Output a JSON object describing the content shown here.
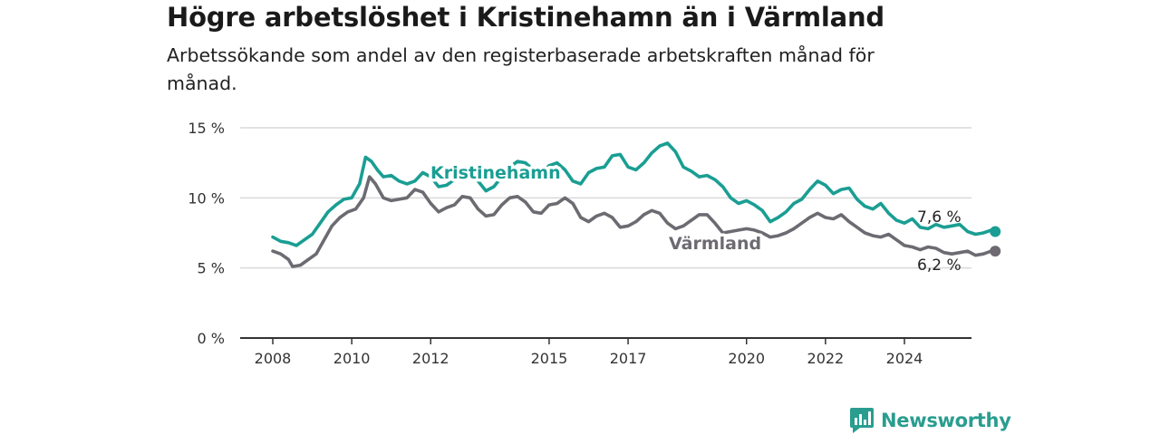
{
  "title": "Högre arbetslöshet i Kristinehamn än i Värmland",
  "subtitle": "Arbetssökande som andel av den registerbaserade arbetskraften månad för månad.",
  "brand": "Newsworthy",
  "colors": {
    "kristinehamn": "#1a9e93",
    "varmland": "#6d6b71",
    "grid": "#d9d9d9",
    "axis": "#333333"
  },
  "chart_data": {
    "type": "line",
    "xlim": [
      2007.3,
      2026.0
    ],
    "ylim": [
      0,
      15
    ],
    "y_ticks": [
      0,
      5,
      10,
      15
    ],
    "y_tick_labels": [
      "0 %",
      "5 %",
      "10 %",
      "15 %"
    ],
    "x_ticks": [
      2008,
      2010,
      2012,
      2015,
      2017,
      2020,
      2022,
      2024
    ],
    "x_tick_labels": [
      "2008",
      "2010",
      "2012",
      "2015",
      "2017",
      "2020",
      "2022",
      "2024"
    ],
    "grid": true,
    "series": [
      {
        "name": "Kristinehamn",
        "end_label": "7,6 %",
        "points": [
          [
            2008.0,
            7.2
          ],
          [
            2008.2,
            6.9
          ],
          [
            2008.4,
            6.8
          ],
          [
            2008.6,
            6.6
          ],
          [
            2008.8,
            7.0
          ],
          [
            2009.0,
            7.4
          ],
          [
            2009.2,
            8.2
          ],
          [
            2009.4,
            9.0
          ],
          [
            2009.6,
            9.5
          ],
          [
            2009.8,
            9.9
          ],
          [
            2010.0,
            10.0
          ],
          [
            2010.2,
            11.0
          ],
          [
            2010.35,
            12.9
          ],
          [
            2010.5,
            12.6
          ],
          [
            2010.65,
            12.0
          ],
          [
            2010.8,
            11.5
          ],
          [
            2011.0,
            11.6
          ],
          [
            2011.2,
            11.2
          ],
          [
            2011.4,
            11.0
          ],
          [
            2011.6,
            11.2
          ],
          [
            2011.8,
            11.8
          ],
          [
            2012.0,
            11.5
          ],
          [
            2012.2,
            10.8
          ],
          [
            2012.4,
            10.9
          ],
          [
            2012.6,
            11.3
          ],
          [
            2012.8,
            11.8
          ],
          [
            2013.0,
            12.0
          ],
          [
            2013.2,
            11.2
          ],
          [
            2013.4,
            10.5
          ],
          [
            2013.6,
            10.8
          ],
          [
            2013.8,
            11.5
          ],
          [
            2014.0,
            12.2
          ],
          [
            2014.2,
            12.6
          ],
          [
            2014.4,
            12.5
          ],
          [
            2014.6,
            12.0
          ],
          [
            2014.8,
            11.8
          ],
          [
            2015.0,
            12.3
          ],
          [
            2015.2,
            12.5
          ],
          [
            2015.4,
            12.0
          ],
          [
            2015.6,
            11.2
          ],
          [
            2015.8,
            11.0
          ],
          [
            2016.0,
            11.8
          ],
          [
            2016.2,
            12.1
          ],
          [
            2016.4,
            12.2
          ],
          [
            2016.6,
            13.0
          ],
          [
            2016.8,
            13.1
          ],
          [
            2017.0,
            12.2
          ],
          [
            2017.2,
            12.0
          ],
          [
            2017.4,
            12.5
          ],
          [
            2017.6,
            13.2
          ],
          [
            2017.8,
            13.7
          ],
          [
            2018.0,
            13.9
          ],
          [
            2018.2,
            13.3
          ],
          [
            2018.4,
            12.2
          ],
          [
            2018.6,
            11.9
          ],
          [
            2018.8,
            11.5
          ],
          [
            2019.0,
            11.6
          ],
          [
            2019.2,
            11.3
          ],
          [
            2019.4,
            10.8
          ],
          [
            2019.6,
            10.0
          ],
          [
            2019.8,
            9.6
          ],
          [
            2020.0,
            9.8
          ],
          [
            2020.2,
            9.5
          ],
          [
            2020.4,
            9.1
          ],
          [
            2020.6,
            8.3
          ],
          [
            2020.8,
            8.6
          ],
          [
            2021.0,
            9.0
          ],
          [
            2021.2,
            9.6
          ],
          [
            2021.4,
            9.9
          ],
          [
            2021.6,
            10.6
          ],
          [
            2021.8,
            11.2
          ],
          [
            2022.0,
            10.9
          ],
          [
            2022.2,
            10.3
          ],
          [
            2022.4,
            10.6
          ],
          [
            2022.6,
            10.7
          ],
          [
            2022.8,
            9.9
          ],
          [
            2023.0,
            9.4
          ],
          [
            2023.2,
            9.2
          ],
          [
            2023.4,
            9.6
          ],
          [
            2023.6,
            8.9
          ],
          [
            2023.8,
            8.4
          ],
          [
            2024.0,
            8.2
          ],
          [
            2024.2,
            8.5
          ],
          [
            2024.4,
            7.9
          ],
          [
            2024.6,
            7.8
          ],
          [
            2024.8,
            8.1
          ],
          [
            2025.0,
            7.9
          ],
          [
            2025.2,
            8.0
          ],
          [
            2025.4,
            8.1
          ],
          [
            2025.6,
            7.6
          ],
          [
            2025.8,
            7.4
          ],
          [
            2026.0,
            7.5
          ],
          [
            2026.2,
            7.7
          ],
          [
            2026.3,
            7.6
          ]
        ]
      },
      {
        "name": "Värmland",
        "end_label": "6,2 %",
        "points": [
          [
            2008.0,
            6.2
          ],
          [
            2008.2,
            6.0
          ],
          [
            2008.4,
            5.6
          ],
          [
            2008.5,
            5.1
          ],
          [
            2008.7,
            5.2
          ],
          [
            2008.9,
            5.6
          ],
          [
            2009.1,
            6.0
          ],
          [
            2009.3,
            7.0
          ],
          [
            2009.5,
            8.0
          ],
          [
            2009.7,
            8.6
          ],
          [
            2009.9,
            9.0
          ],
          [
            2010.1,
            9.2
          ],
          [
            2010.3,
            10.0
          ],
          [
            2010.45,
            11.5
          ],
          [
            2010.6,
            11.0
          ],
          [
            2010.8,
            10.0
          ],
          [
            2011.0,
            9.8
          ],
          [
            2011.2,
            9.9
          ],
          [
            2011.4,
            10.0
          ],
          [
            2011.6,
            10.6
          ],
          [
            2011.8,
            10.4
          ],
          [
            2012.0,
            9.6
          ],
          [
            2012.2,
            9.0
          ],
          [
            2012.4,
            9.3
          ],
          [
            2012.6,
            9.5
          ],
          [
            2012.8,
            10.1
          ],
          [
            2013.0,
            10.0
          ],
          [
            2013.2,
            9.2
          ],
          [
            2013.4,
            8.7
          ],
          [
            2013.6,
            8.8
          ],
          [
            2013.8,
            9.5
          ],
          [
            2014.0,
            10.0
          ],
          [
            2014.2,
            10.1
          ],
          [
            2014.4,
            9.7
          ],
          [
            2014.6,
            9.0
          ],
          [
            2014.8,
            8.9
          ],
          [
            2015.0,
            9.5
          ],
          [
            2015.2,
            9.6
          ],
          [
            2015.4,
            10.0
          ],
          [
            2015.6,
            9.6
          ],
          [
            2015.8,
            8.6
          ],
          [
            2016.0,
            8.3
          ],
          [
            2016.2,
            8.7
          ],
          [
            2016.4,
            8.9
          ],
          [
            2016.6,
            8.6
          ],
          [
            2016.8,
            7.9
          ],
          [
            2017.0,
            8.0
          ],
          [
            2017.2,
            8.3
          ],
          [
            2017.4,
            8.8
          ],
          [
            2017.6,
            9.1
          ],
          [
            2017.8,
            8.9
          ],
          [
            2018.0,
            8.2
          ],
          [
            2018.2,
            7.8
          ],
          [
            2018.4,
            8.0
          ],
          [
            2018.6,
            8.4
          ],
          [
            2018.8,
            8.8
          ],
          [
            2019.0,
            8.8
          ],
          [
            2019.2,
            8.2
          ],
          [
            2019.4,
            7.5
          ],
          [
            2019.6,
            7.6
          ],
          [
            2019.8,
            7.7
          ],
          [
            2020.0,
            7.8
          ],
          [
            2020.2,
            7.7
          ],
          [
            2020.4,
            7.5
          ],
          [
            2020.6,
            7.2
          ],
          [
            2020.8,
            7.3
          ],
          [
            2021.0,
            7.5
          ],
          [
            2021.2,
            7.8
          ],
          [
            2021.4,
            8.2
          ],
          [
            2021.6,
            8.6
          ],
          [
            2021.8,
            8.9
          ],
          [
            2022.0,
            8.6
          ],
          [
            2022.2,
            8.5
          ],
          [
            2022.4,
            8.8
          ],
          [
            2022.6,
            8.3
          ],
          [
            2022.8,
            7.9
          ],
          [
            2023.0,
            7.5
          ],
          [
            2023.2,
            7.3
          ],
          [
            2023.4,
            7.2
          ],
          [
            2023.6,
            7.4
          ],
          [
            2023.8,
            7.0
          ],
          [
            2024.0,
            6.6
          ],
          [
            2024.2,
            6.5
          ],
          [
            2024.4,
            6.3
          ],
          [
            2024.6,
            6.5
          ],
          [
            2024.8,
            6.4
          ],
          [
            2025.0,
            6.1
          ],
          [
            2025.2,
            6.0
          ],
          [
            2025.4,
            6.1
          ],
          [
            2025.6,
            6.2
          ],
          [
            2025.8,
            5.9
          ],
          [
            2026.0,
            6.0
          ],
          [
            2026.2,
            6.2
          ],
          [
            2026.3,
            6.2
          ]
        ]
      }
    ]
  }
}
